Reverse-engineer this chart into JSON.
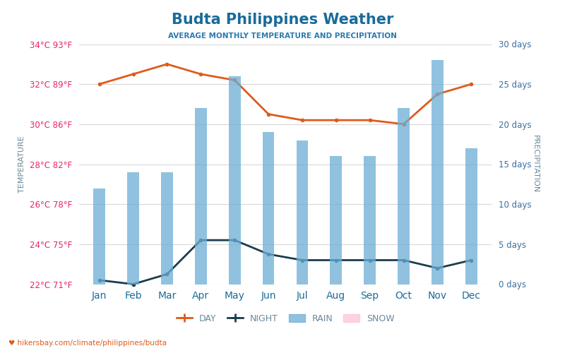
{
  "title": "Budta Philippines Weather",
  "subtitle": "AVERAGE MONTHLY TEMPERATURE AND PRECIPITATION",
  "months": [
    "Jan",
    "Feb",
    "Mar",
    "Apr",
    "May",
    "Jun",
    "Jul",
    "Aug",
    "Sep",
    "Oct",
    "Nov",
    "Dec"
  ],
  "day_temp": [
    32.0,
    32.5,
    33.0,
    32.5,
    32.2,
    30.5,
    30.2,
    30.2,
    30.2,
    30.0,
    31.5,
    32.0
  ],
  "night_temp": [
    22.2,
    22.0,
    22.5,
    24.2,
    24.2,
    23.5,
    23.2,
    23.2,
    23.2,
    23.2,
    22.8,
    23.2
  ],
  "rain_days": [
    12,
    14,
    14,
    22,
    26,
    19,
    18,
    16,
    16,
    22,
    28,
    17
  ],
  "temp_min": 22,
  "temp_max": 34,
  "precip_min": 0,
  "precip_max": 30,
  "temp_ticks": [
    22,
    24,
    26,
    28,
    30,
    32,
    34
  ],
  "temp_tick_labels": [
    "22°C 71°F",
    "24°C 75°F",
    "26°C 78°F",
    "28°C 82°F",
    "30°C 86°F",
    "32°C 89°F",
    "34°C 93°F"
  ],
  "precip_ticks": [
    0,
    5,
    10,
    15,
    20,
    25,
    30
  ],
  "precip_tick_labels": [
    "0 days",
    "5 days",
    "10 days",
    "15 days",
    "20 days",
    "25 days",
    "30 days"
  ],
  "bar_color": "#6baed6",
  "bar_alpha": 0.75,
  "day_color": "#e05a1a",
  "night_color": "#1a3d4d",
  "title_color": "#1a6b9a",
  "subtitle_color": "#2a7ab0",
  "left_label_color": "#e8265e",
  "right_label_color": "#3a6fa0",
  "axis_label_color": "#6a8a9a",
  "watermark": "hikersbay.com/climate/philippines/budta",
  "ylabel_left": "TEMPERATURE",
  "ylabel_right": "PRECIPITATION",
  "bg_color": "#ffffff",
  "grid_color": "#d8d8d8"
}
